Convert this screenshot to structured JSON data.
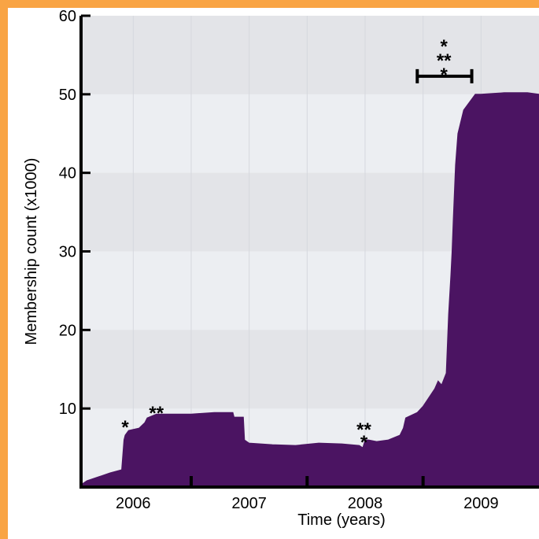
{
  "chart_data": {
    "type": "area",
    "title": "",
    "xlabel": "Time (years)",
    "ylabel": "Membership count (x1000)",
    "xlim": [
      2005.55,
      2009.5
    ],
    "ylim": [
      0,
      60
    ],
    "grid": true,
    "x_ticks": [
      2006,
      2007,
      2008,
      2009
    ],
    "x_tick_labels": [
      "2006",
      "2007",
      "2008",
      "2009"
    ],
    "x_minor_ticks": [
      2006.5,
      2007.5,
      2008.5
    ],
    "y_ticks": [
      10,
      20,
      30,
      40,
      50,
      60
    ],
    "y_tick_labels": [
      "10",
      "20",
      "30",
      "40",
      "50",
      "60"
    ],
    "fill_color": "#4b1462",
    "plot_background": "#e3e4e8",
    "frame_color": "#f9a444",
    "series": [
      {
        "x": [
          2005.55,
          2005.6,
          2005.7,
          2005.8,
          2005.9,
          2005.92,
          2005.93,
          2005.96,
          2006.05,
          2006.1,
          2006.12,
          2006.2,
          2006.27,
          2006.3,
          2006.5,
          2006.7,
          2006.75,
          2006.86,
          2006.87,
          2006.95,
          2006.96,
          2007.0,
          2007.2,
          2007.4,
          2007.6,
          2007.8,
          2007.95,
          2007.98,
          2008.0,
          2008.03,
          2008.1,
          2008.2,
          2008.3,
          2008.33,
          2008.35,
          2008.45,
          2008.5,
          2008.6,
          2008.63,
          2008.66,
          2008.7,
          2008.72,
          2008.74,
          2008.75,
          2008.76,
          2008.78,
          2008.8,
          2008.85,
          2008.9,
          2008.95,
          2009.0,
          2009.1,
          2009.2,
          2009.3,
          2009.4,
          2009.5
        ],
        "y": [
          0.3,
          0.8,
          1.3,
          1.8,
          2.2,
          6.0,
          6.6,
          7.2,
          7.5,
          8.2,
          8.8,
          9.3,
          9.3,
          9.3,
          9.3,
          9.5,
          9.5,
          9.5,
          8.9,
          8.9,
          6.0,
          5.6,
          5.4,
          5.3,
          5.6,
          5.5,
          5.3,
          5.0,
          6.0,
          6.0,
          5.8,
          6.0,
          6.6,
          7.5,
          8.8,
          9.5,
          10.3,
          12.5,
          13.5,
          13.0,
          14.5,
          22.0,
          27.0,
          30.0,
          34.0,
          41.0,
          45.0,
          48.0,
          49.0,
          50.0,
          50.0,
          50.1,
          50.2,
          50.2,
          50.2,
          50.0
        ]
      }
    ],
    "significance_bar": {
      "x_start": 2008.45,
      "x_end": 2008.92,
      "y": 52.3
    },
    "annotations": [
      {
        "text": "*",
        "x": 2005.93,
        "y": 8.0
      },
      {
        "text": "**",
        "x": 2006.2,
        "y": 9.8
      },
      {
        "text": "**",
        "x": 2007.99,
        "y": 7.7
      },
      {
        "text": "*",
        "x": 2007.99,
        "y": 6.1
      },
      {
        "text": "*",
        "x": 2008.68,
        "y": 56.5
      },
      {
        "text": "**",
        "x": 2008.68,
        "y": 54.7
      },
      {
        "text": "*",
        "x": 2008.68,
        "y": 52.9
      }
    ]
  }
}
